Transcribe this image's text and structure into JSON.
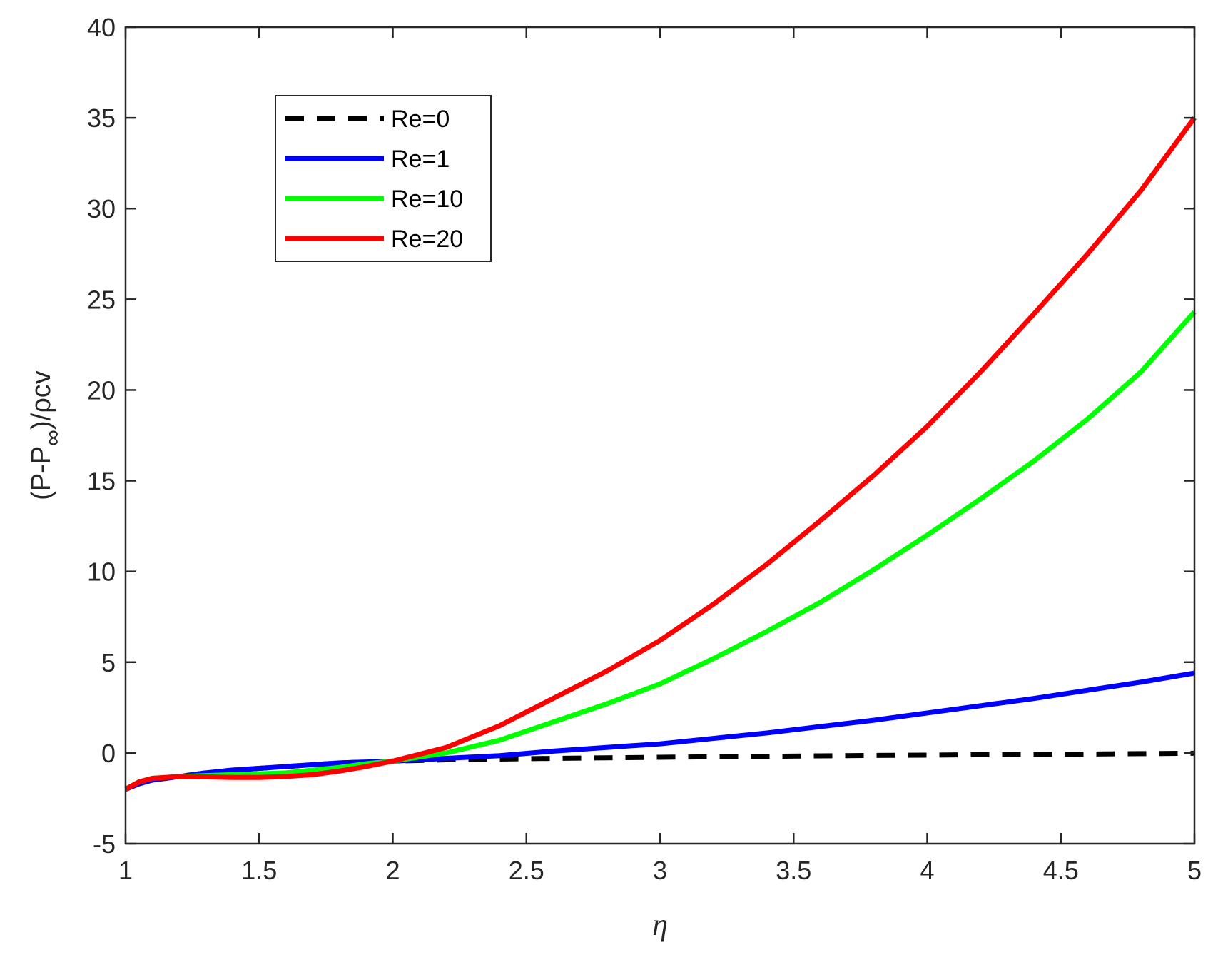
{
  "chart_data": {
    "type": "line",
    "xlabel": "η",
    "ylabel": {
      "prefix": "(P-P",
      "subscript": "∞",
      "suffix": ")/ρcv"
    },
    "xlim": [
      1,
      5
    ],
    "ylim": [
      -5,
      40
    ],
    "xticks": [
      "1",
      "1.5",
      "2",
      "2.5",
      "3",
      "3.5",
      "4",
      "4.5",
      "5"
    ],
    "yticks": [
      "-5",
      "0",
      "5",
      "10",
      "15",
      "20",
      "25",
      "30",
      "35",
      "40"
    ],
    "grid": false,
    "legend_position": "top-left",
    "x": [
      1.0,
      1.05,
      1.1,
      1.2,
      1.3,
      1.4,
      1.5,
      1.6,
      1.7,
      1.8,
      1.9,
      2.0,
      2.2,
      2.4,
      2.6,
      2.8,
      3.0,
      3.2,
      3.4,
      3.6,
      3.8,
      4.0,
      4.2,
      4.4,
      4.6,
      4.8,
      5.0
    ],
    "series": [
      {
        "name": "Re=0",
        "color": "#000000",
        "style": "dashed",
        "values": [
          -2.0,
          -1.7,
          -1.5,
          -1.3,
          -1.1,
          -0.95,
          -0.85,
          -0.75,
          -0.65,
          -0.55,
          -0.5,
          -0.45,
          -0.38,
          -0.34,
          -0.3,
          -0.27,
          -0.24,
          -0.21,
          -0.19,
          -0.16,
          -0.14,
          -0.12,
          -0.1,
          -0.08,
          -0.06,
          -0.04,
          -0.02
        ]
      },
      {
        "name": "Re=1",
        "color": "#0000ff",
        "style": "solid",
        "values": [
          -2.0,
          -1.7,
          -1.5,
          -1.3,
          -1.1,
          -0.95,
          -0.85,
          -0.75,
          -0.65,
          -0.55,
          -0.5,
          -0.45,
          -0.3,
          -0.15,
          0.1,
          0.3,
          0.5,
          0.8,
          1.1,
          1.45,
          1.8,
          2.2,
          2.6,
          3.0,
          3.45,
          3.9,
          4.4
        ]
      },
      {
        "name": "Re=10",
        "color": "#00ff00",
        "style": "solid",
        "values": [
          -2.0,
          -1.6,
          -1.4,
          -1.3,
          -1.25,
          -1.2,
          -1.15,
          -1.1,
          -0.95,
          -0.8,
          -0.6,
          -0.45,
          0.0,
          0.7,
          1.7,
          2.7,
          3.8,
          5.2,
          6.7,
          8.3,
          10.1,
          12.0,
          14.0,
          16.1,
          18.4,
          21.0,
          24.3
        ]
      },
      {
        "name": "Re=20",
        "color": "#ff0000",
        "style": "solid",
        "values": [
          -2.0,
          -1.6,
          -1.4,
          -1.3,
          -1.32,
          -1.35,
          -1.35,
          -1.3,
          -1.2,
          -1.0,
          -0.75,
          -0.45,
          0.3,
          1.5,
          3.0,
          4.5,
          6.2,
          8.2,
          10.4,
          12.8,
          15.3,
          18.0,
          21.0,
          24.2,
          27.5,
          31.0,
          35.0
        ]
      }
    ]
  }
}
